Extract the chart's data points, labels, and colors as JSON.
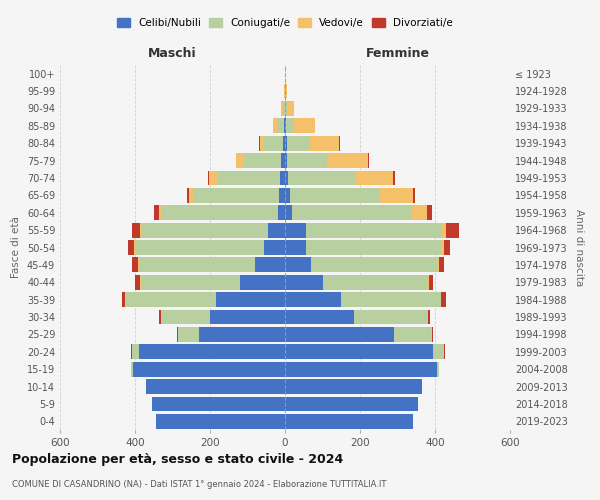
{
  "age_groups": [
    "0-4",
    "5-9",
    "10-14",
    "15-19",
    "20-24",
    "25-29",
    "30-34",
    "35-39",
    "40-44",
    "45-49",
    "50-54",
    "55-59",
    "60-64",
    "65-69",
    "70-74",
    "75-79",
    "80-84",
    "85-89",
    "90-94",
    "95-99",
    "100+"
  ],
  "birth_years": [
    "2019-2023",
    "2014-2018",
    "2009-2013",
    "2004-2008",
    "1999-2003",
    "1994-1998",
    "1989-1993",
    "1984-1988",
    "1979-1983",
    "1974-1978",
    "1969-1973",
    "1964-1968",
    "1959-1963",
    "1954-1958",
    "1949-1953",
    "1944-1948",
    "1939-1943",
    "1934-1938",
    "1929-1933",
    "1924-1928",
    "≤ 1923"
  ],
  "male": {
    "celibi": [
      345,
      355,
      370,
      405,
      390,
      230,
      200,
      185,
      120,
      80,
      55,
      45,
      20,
      16,
      14,
      10,
      5,
      3,
      1,
      0,
      0
    ],
    "coniugati": [
      0,
      0,
      0,
      5,
      18,
      55,
      130,
      240,
      265,
      310,
      345,
      340,
      310,
      230,
      165,
      100,
      50,
      18,
      4,
      1,
      0
    ],
    "vedovi": [
      0,
      0,
      0,
      0,
      1,
      1,
      1,
      1,
      2,
      2,
      2,
      2,
      5,
      10,
      25,
      20,
      12,
      10,
      5,
      1,
      0
    ],
    "divorziati": [
      0,
      0,
      0,
      0,
      1,
      2,
      5,
      10,
      12,
      15,
      18,
      20,
      15,
      5,
      2,
      2,
      2,
      1,
      0,
      0,
      0
    ]
  },
  "female": {
    "nubili": [
      340,
      355,
      365,
      405,
      395,
      290,
      185,
      150,
      100,
      70,
      55,
      55,
      18,
      12,
      8,
      6,
      4,
      2,
      1,
      0,
      0
    ],
    "coniugate": [
      0,
      0,
      0,
      5,
      28,
      100,
      195,
      265,
      280,
      335,
      360,
      360,
      320,
      240,
      180,
      105,
      60,
      22,
      5,
      2,
      0
    ],
    "vedove": [
      0,
      0,
      0,
      0,
      1,
      1,
      1,
      2,
      4,
      5,
      8,
      15,
      40,
      90,
      100,
      110,
      80,
      55,
      18,
      2,
      0
    ],
    "divorziate": [
      0,
      0,
      0,
      0,
      2,
      3,
      5,
      12,
      10,
      15,
      18,
      35,
      15,
      5,
      5,
      2,
      2,
      1,
      0,
      0,
      0
    ]
  },
  "colors": {
    "celibi_nubili": "#4472c4",
    "coniugati": "#b8cfa0",
    "vedovi": "#f5c06a",
    "divorziati": "#c0392b"
  },
  "title": "Popolazione per età, sesso e stato civile - 2024",
  "subtitle": "COMUNE DI CASANDRINO (NA) - Dati ISTAT 1° gennaio 2024 - Elaborazione TUTTITALIA.IT",
  "xlabel_left": "Maschi",
  "xlabel_right": "Femmine",
  "ylabel_left": "Fasce di età",
  "ylabel_right": "Anni di nascita",
  "xlim": 600,
  "bg_color": "#f5f5f5",
  "grid_color": "#cccccc"
}
